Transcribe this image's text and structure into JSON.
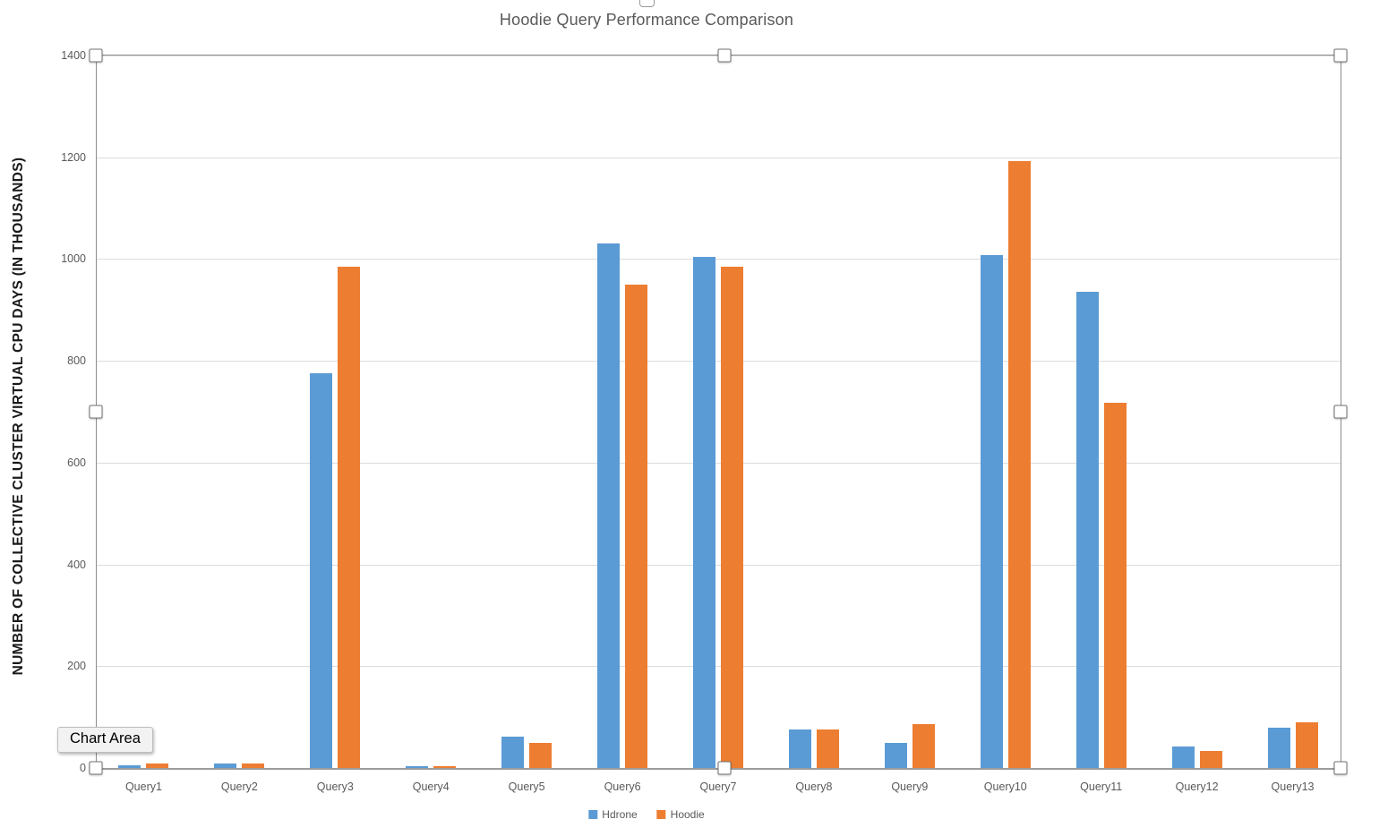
{
  "tooltip": {
    "label": "Chart Area"
  },
  "legend": {
    "items_note": "rendered from chart_data.series"
  },
  "selection": {
    "handle_count": 8
  },
  "colors": {
    "series_hdrone": "#5B9BD5",
    "series_hoodie": "#ED7D31",
    "gridline": "#DCDCDC",
    "axis_line": "#8C8C8C",
    "label_text": "#595959",
    "axis_title_text": "#1A1A1A",
    "background": "#FFFFFF"
  },
  "chart_data": {
    "type": "bar",
    "title": "Hoodie Query Performance Comparison",
    "xlabel": "",
    "ylabel": "NUMBER OF COLLECTIVE CLUSTER VIRTUAL CPU DAYS (IN THOUSANDS)",
    "categories": [
      "Query1",
      "Query2",
      "Query3",
      "Query4",
      "Query5",
      "Query6",
      "Query7",
      "Query8",
      "Query9",
      "Query10",
      "Query11",
      "Query12",
      "Query13"
    ],
    "series": [
      {
        "name": "Hdrone",
        "color": "#5B9BD5",
        "values": [
          5,
          9,
          775,
          4,
          62,
          1030,
          1005,
          75,
          50,
          1008,
          935,
          42,
          80
        ]
      },
      {
        "name": "Hoodie",
        "color": "#ED7D31",
        "values": [
          9,
          9,
          985,
          4,
          50,
          950,
          985,
          75,
          87,
          1193,
          718,
          33,
          89
        ]
      }
    ],
    "ylim": [
      0,
      1400
    ],
    "yticks": [
      0,
      200,
      400,
      600,
      800,
      1000,
      1200,
      1400
    ],
    "grid": true,
    "legend_position": "bottom"
  }
}
